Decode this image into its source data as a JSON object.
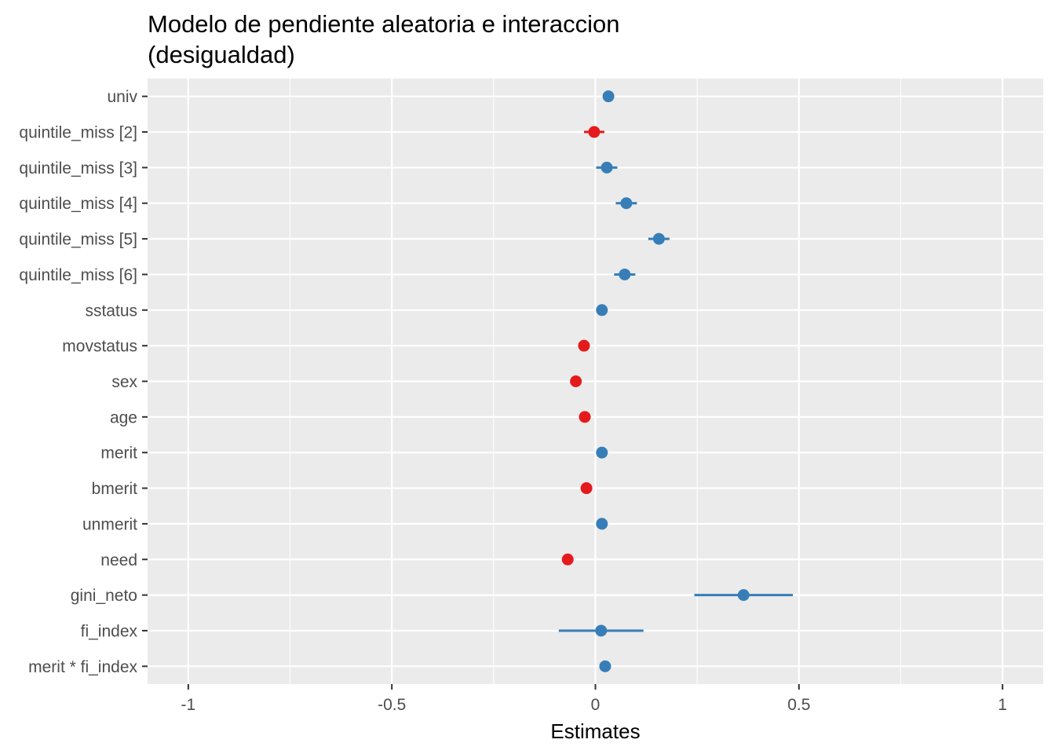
{
  "chart_data": {
    "type": "forest",
    "title": "Modelo de pendiente aleatoria e interaccion",
    "title_line2": "(desigualdad)",
    "xlabel": "Estimates",
    "xlim": [
      -1.1,
      1.1
    ],
    "xticks": [
      -1,
      -0.5,
      0,
      0.5,
      1
    ],
    "xtick_labels": [
      "-1",
      "-0.5",
      "0",
      "0.5",
      "1"
    ],
    "x_minor_ticks": [
      -0.75,
      -0.25,
      0.25,
      0.75
    ],
    "grid": true,
    "colors": {
      "positive": "#377EB8",
      "negative": "#E41A1C",
      "panel": "#EBEBEB",
      "grid": "#FFFFFF"
    },
    "terms": [
      {
        "label": "univ",
        "estimate": 0.032,
        "ci": [
          0.022,
          0.042
        ]
      },
      {
        "label": "quintile_miss [2]",
        "estimate": -0.003,
        "ci": [
          -0.028,
          0.022
        ]
      },
      {
        "label": "quintile_miss [3]",
        "estimate": 0.028,
        "ci": [
          0.002,
          0.054
        ]
      },
      {
        "label": "quintile_miss [4]",
        "estimate": 0.076,
        "ci": [
          0.05,
          0.102
        ]
      },
      {
        "label": "quintile_miss [5]",
        "estimate": 0.156,
        "ci": [
          0.13,
          0.182
        ]
      },
      {
        "label": "quintile_miss [6]",
        "estimate": 0.072,
        "ci": [
          0.046,
          0.098
        ]
      },
      {
        "label": "sstatus",
        "estimate": 0.016,
        "ci": [
          0.008,
          0.024
        ]
      },
      {
        "label": "movstatus",
        "estimate": -0.028,
        "ci": [
          -0.036,
          -0.02
        ]
      },
      {
        "label": "sex",
        "estimate": -0.048,
        "ci": [
          -0.056,
          -0.04
        ]
      },
      {
        "label": "age",
        "estimate": -0.026,
        "ci": [
          -0.034,
          -0.018
        ]
      },
      {
        "label": "merit",
        "estimate": 0.016,
        "ci": [
          0.008,
          0.024
        ]
      },
      {
        "label": "bmerit",
        "estimate": -0.022,
        "ci": [
          -0.03,
          -0.014
        ]
      },
      {
        "label": "unmerit",
        "estimate": 0.016,
        "ci": [
          0.008,
          0.024
        ]
      },
      {
        "label": "need",
        "estimate": -0.068,
        "ci": [
          -0.076,
          -0.06
        ]
      },
      {
        "label": "gini_neto",
        "estimate": 0.364,
        "ci": [
          0.243,
          0.485
        ]
      },
      {
        "label": "fi_index",
        "estimate": 0.014,
        "ci": [
          -0.09,
          0.118
        ]
      },
      {
        "label": "merit * fi_index",
        "estimate": 0.024,
        "ci": [
          0.014,
          0.034
        ]
      }
    ]
  }
}
